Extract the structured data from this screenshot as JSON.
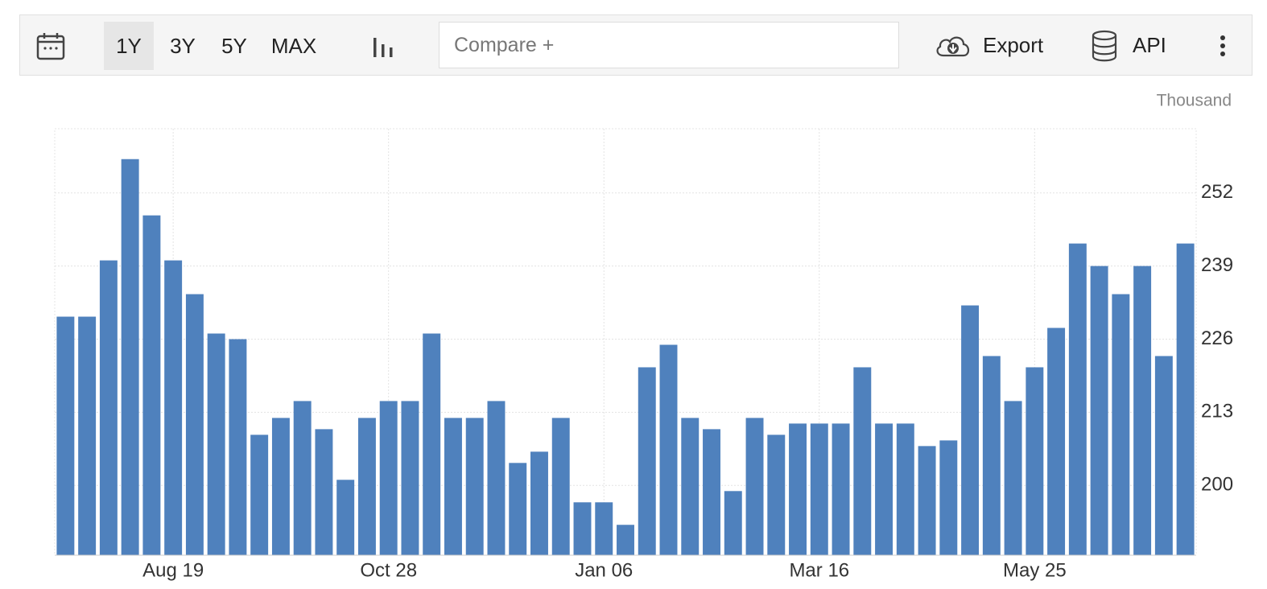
{
  "toolbar": {
    "ranges": [
      "1Y",
      "3Y",
      "5Y",
      "MAX"
    ],
    "active_range": "1Y",
    "compare": "Compare +",
    "export": "Export",
    "api": "API"
  },
  "chart_data": {
    "type": "bar",
    "unit": "Thousand",
    "color": "#4f81bd",
    "grid": true,
    "y_axis_side": "right",
    "categories": [
      null,
      null,
      null,
      null,
      null,
      "Aug 19",
      null,
      null,
      null,
      null,
      null,
      null,
      null,
      null,
      null,
      "Oct 28",
      null,
      null,
      null,
      null,
      null,
      null,
      null,
      null,
      null,
      "Jan 06",
      null,
      null,
      null,
      null,
      null,
      null,
      null,
      null,
      null,
      "Mar 16",
      null,
      null,
      null,
      null,
      null,
      null,
      null,
      null,
      null,
      "May 25",
      null,
      null,
      null,
      null,
      null,
      null,
      null
    ],
    "values": [
      230,
      230,
      240,
      258,
      248,
      240,
      234,
      227,
      226,
      209,
      212,
      215,
      210,
      201,
      212,
      215,
      215,
      227,
      212,
      212,
      215,
      204,
      206,
      212,
      197,
      197,
      193,
      221,
      225,
      212,
      210,
      199,
      212,
      209,
      211,
      211,
      211,
      221,
      211,
      211,
      207,
      208,
      232,
      223,
      215,
      221,
      228,
      243,
      239,
      234,
      239,
      223,
      243
    ],
    "ylim": [
      187.6,
      263.4
    ],
    "yticks": [
      200,
      213,
      226,
      239,
      252
    ]
  }
}
